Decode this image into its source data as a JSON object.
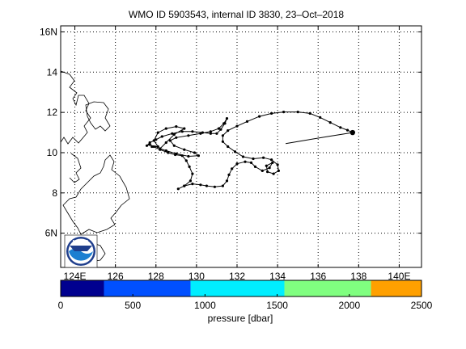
{
  "title": "WMO ID 5903543, internal ID 3830, 23–Oct–2018",
  "map": {
    "lon_range": [
      123.3,
      141.1
    ],
    "lat_range": [
      4.3,
      16.3
    ],
    "lat_ticks": [
      {
        "value": 16,
        "label": "16N"
      },
      {
        "value": 14,
        "label": "14"
      },
      {
        "value": 12,
        "label": "12"
      },
      {
        "value": 10,
        "label": "10"
      },
      {
        "value": 8,
        "label": "8"
      },
      {
        "value": 6,
        "label": "6N"
      }
    ],
    "lon_ticks": [
      {
        "value": 124,
        "label": "124E"
      },
      {
        "value": 126,
        "label": "126"
      },
      {
        "value": 128,
        "label": "128"
      },
      {
        "value": 130,
        "label": "130"
      },
      {
        "value": 132,
        "label": "132"
      },
      {
        "value": 134,
        "label": "134"
      },
      {
        "value": 136,
        "label": "136"
      },
      {
        "value": 138,
        "label": "138"
      },
      {
        "value": 140,
        "label": "140E"
      }
    ],
    "grid": true,
    "trajectory_color": "#000000",
    "deployment_marker": {
      "lon": 137.7,
      "lat": 11.0
    }
  },
  "colorbar": {
    "label": "pressure [dbar]",
    "range": [
      0,
      2500
    ],
    "ticks": [
      {
        "value": 0,
        "label": "0"
      },
      {
        "value": 500,
        "label": "500"
      },
      {
        "value": 1000,
        "label": "1000"
      },
      {
        "value": 1500,
        "label": "1500"
      },
      {
        "value": 2000,
        "label": "2000"
      },
      {
        "value": 2500,
        "label": "2500"
      }
    ],
    "bands": [
      {
        "from": 0,
        "to": 300,
        "color": "#00008f"
      },
      {
        "from": 300,
        "to": 900,
        "color": "#0050ff"
      },
      {
        "from": 900,
        "to": 1550,
        "color": "#00eeff"
      },
      {
        "from": 1550,
        "to": 2150,
        "color": "#80ff80"
      },
      {
        "from": 2150,
        "to": 2500,
        "color": "#ffa000"
      }
    ]
  },
  "logo": {
    "text": "NOAA"
  },
  "chart_data": {
    "type": "line",
    "xlabel": "",
    "ylabel": "",
    "xlim": [
      123.3,
      141.1
    ],
    "ylim": [
      4.3,
      16.3
    ],
    "series": [
      {
        "points": [
          [
            134.4,
            10.45
          ],
          [
            135.4,
            10.62
          ],
          [
            136.6,
            10.82
          ],
          [
            137.7,
            11.0
          ],
          [
            137.45,
            11.12
          ],
          [
            137.1,
            11.25
          ],
          [
            136.6,
            11.5
          ],
          [
            136.1,
            11.75
          ],
          [
            135.6,
            11.95
          ],
          [
            135.0,
            12.02
          ],
          [
            134.3,
            12.02
          ],
          [
            133.7,
            11.95
          ],
          [
            133.1,
            11.8
          ],
          [
            132.5,
            11.55
          ],
          [
            132.0,
            11.32
          ],
          [
            131.55,
            11.1
          ],
          [
            131.3,
            10.85
          ],
          [
            131.3,
            10.55
          ],
          [
            131.55,
            10.3
          ],
          [
            131.9,
            10.05
          ],
          [
            132.3,
            9.8
          ],
          [
            132.8,
            9.7
          ],
          [
            133.3,
            9.75
          ],
          [
            133.7,
            9.65
          ],
          [
            134.0,
            9.4
          ],
          [
            134.05,
            9.1
          ],
          [
            133.8,
            8.95
          ],
          [
            133.5,
            9.05
          ],
          [
            133.45,
            9.35
          ],
          [
            133.75,
            9.5
          ],
          [
            133.6,
            9.25
          ],
          [
            133.25,
            9.1
          ],
          [
            132.9,
            9.3
          ],
          [
            132.7,
            9.5
          ],
          [
            132.4,
            9.55
          ],
          [
            132.0,
            9.45
          ],
          [
            131.75,
            9.2
          ],
          [
            131.6,
            8.9
          ],
          [
            131.5,
            8.6
          ],
          [
            131.3,
            8.35
          ],
          [
            130.9,
            8.3
          ],
          [
            130.5,
            8.35
          ],
          [
            130.2,
            8.4
          ],
          [
            129.8,
            8.45
          ],
          [
            129.4,
            8.35
          ],
          [
            129.1,
            8.2
          ],
          [
            129.4,
            8.35
          ],
          [
            129.7,
            8.6
          ],
          [
            129.8,
            8.95
          ],
          [
            129.65,
            9.3
          ],
          [
            129.5,
            9.6
          ],
          [
            129.3,
            9.85
          ],
          [
            128.95,
            9.9
          ],
          [
            128.6,
            10.0
          ],
          [
            128.2,
            10.15
          ],
          [
            127.9,
            10.3
          ],
          [
            127.7,
            10.4
          ],
          [
            127.55,
            10.35
          ],
          [
            127.7,
            10.5
          ],
          [
            128.0,
            10.65
          ],
          [
            128.3,
            10.8
          ],
          [
            128.8,
            10.95
          ],
          [
            129.3,
            11.05
          ],
          [
            129.8,
            11.05
          ],
          [
            130.3,
            11.0
          ],
          [
            130.7,
            10.95
          ],
          [
            131.0,
            10.95
          ],
          [
            131.2,
            11.15
          ],
          [
            131.4,
            11.45
          ],
          [
            131.5,
            11.7
          ],
          [
            131.35,
            11.45
          ],
          [
            131.1,
            11.2
          ],
          [
            130.7,
            11.05
          ],
          [
            130.2,
            10.95
          ],
          [
            129.6,
            10.85
          ],
          [
            129.0,
            10.75
          ],
          [
            128.7,
            10.6
          ],
          [
            128.9,
            10.35
          ],
          [
            129.4,
            10.15
          ],
          [
            129.9,
            10.0
          ],
          [
            130.1,
            9.85
          ],
          [
            129.6,
            9.82
          ],
          [
            129.0,
            9.95
          ],
          [
            128.5,
            10.1
          ],
          [
            128.2,
            10.2
          ],
          [
            128.5,
            10.5
          ],
          [
            128.9,
            10.9
          ],
          [
            129.4,
            11.2
          ],
          [
            129.0,
            11.3
          ],
          [
            128.5,
            11.2
          ],
          [
            128.1,
            11.0
          ],
          [
            127.9,
            10.6
          ],
          [
            128.1,
            10.3
          ],
          [
            127.8,
            10.3
          ]
        ]
      }
    ]
  }
}
